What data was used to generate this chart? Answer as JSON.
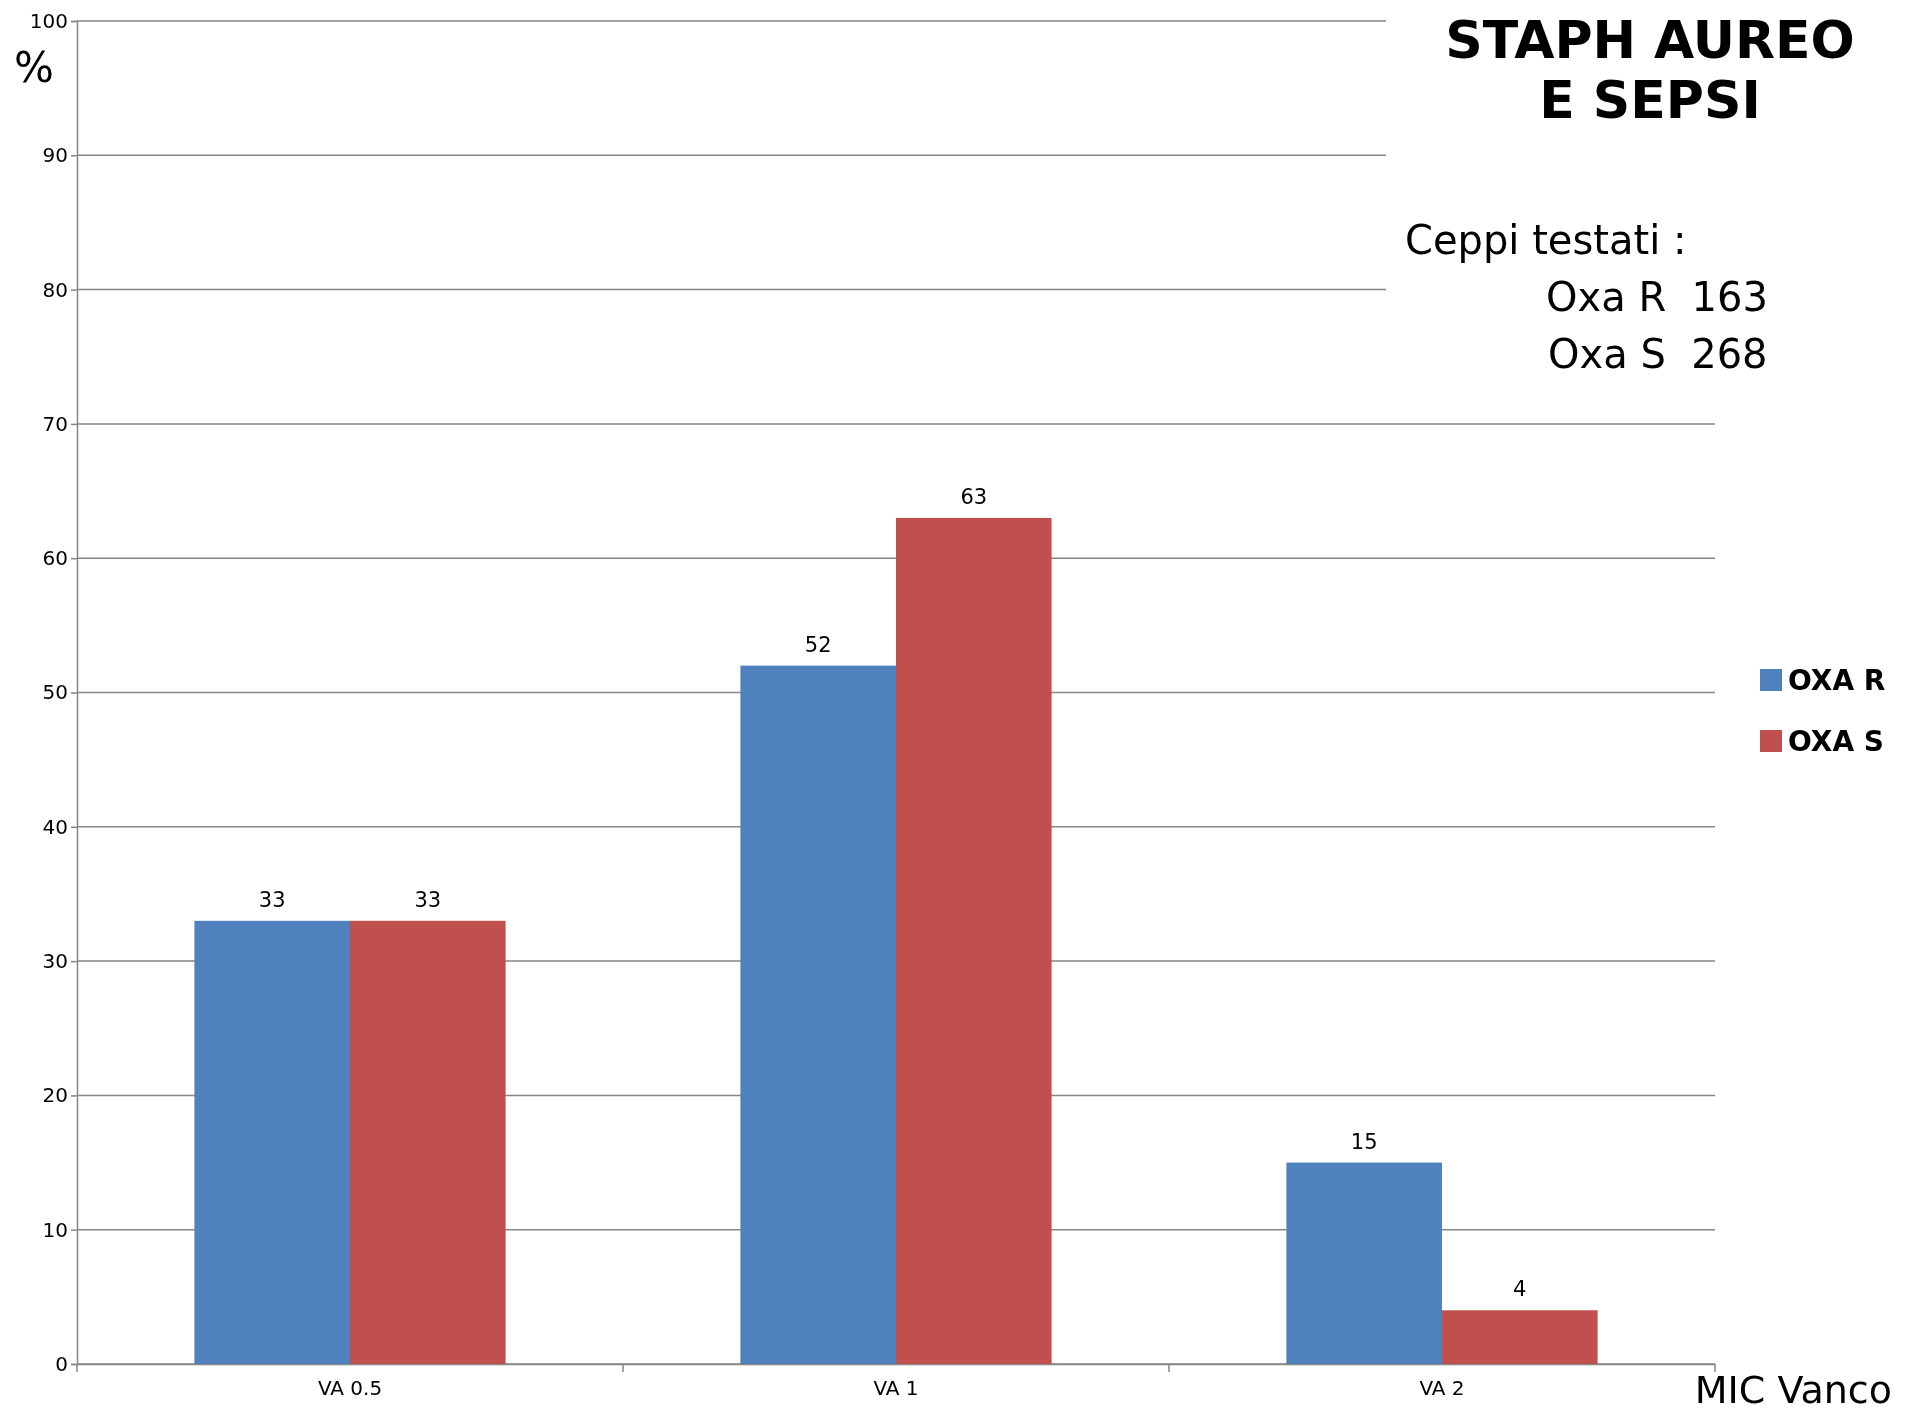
{
  "chart_data": {
    "type": "bar",
    "title": "STAPH AUREO E SEPSI",
    "ylabel": "%",
    "xlabel": "MIC Vanco",
    "annotations": [
      "Ceppi testati :",
      "Oxa R  163",
      "Oxa S  268"
    ],
    "categories": [
      "VA 0.5",
      "VA 1",
      "VA 2"
    ],
    "series": [
      {
        "name": "OXA R",
        "color": "#4f81bd",
        "values": [
          33,
          52,
          15
        ]
      },
      {
        "name": "OXA S",
        "color": "#c0504d",
        "values": [
          33,
          63,
          4
        ]
      }
    ],
    "ylim": [
      0,
      100
    ],
    "yticks": [
      0,
      10,
      20,
      30,
      40,
      50,
      60,
      70,
      80,
      90,
      100
    ],
    "grid": "y",
    "legend": "right",
    "data_labels": true
  }
}
